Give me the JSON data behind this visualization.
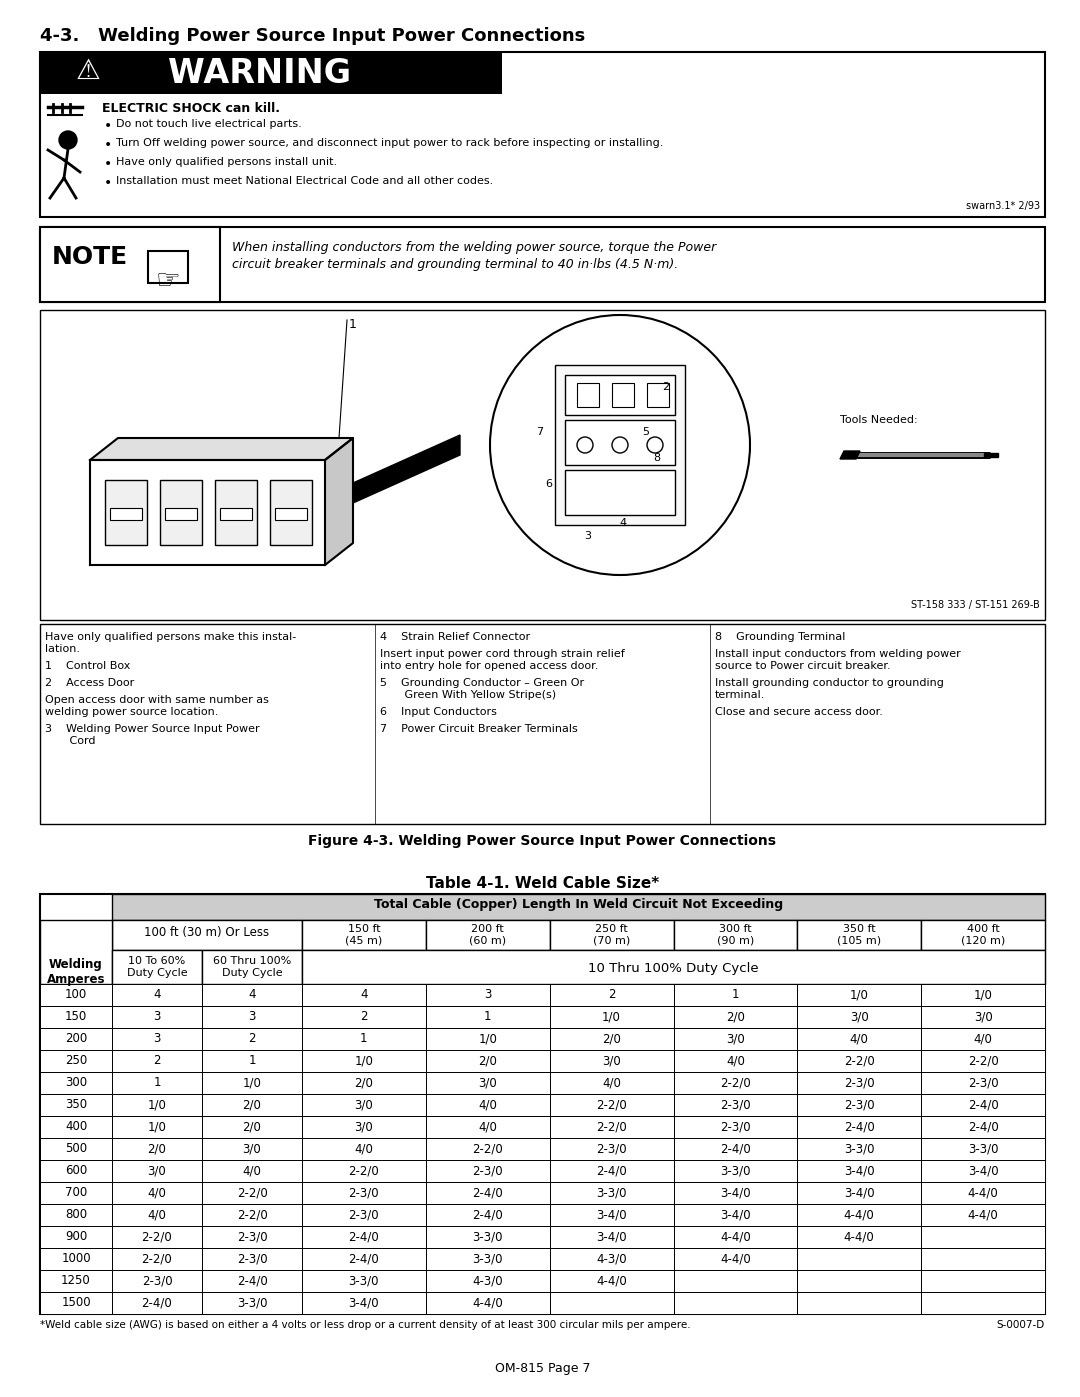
{
  "title": "4-3.   Welding Power Source Input Power Connections",
  "warning_title": "WARNING",
  "warning_subtitle": "ELECTRIC SHOCK can kill.",
  "warning_bullets": [
    "Do not touch live electrical parts.",
    "Turn Off welding power source, and disconnect input power to rack before inspecting or installing.",
    "Have only qualified persons install unit.",
    "Installation must meet National Electrical Code and all other codes."
  ],
  "warning_code": "swarn3.1* 2/93",
  "note_text": "When installing conductors from the welding power source, torque the Power\ncircuit breaker terminals and grounding terminal to 40 in·lbs (4.5 N·m).",
  "figure_caption": "Figure 4-3. Welding Power Source Input Power Connections",
  "figure_labels_left": [
    "Have only qualified persons make this instal-\nlation.",
    "1    Control Box",
    "2    Access Door",
    "Open access door with same number as\nwelding power source location.",
    "3    Welding Power Source Input Power\n       Cord"
  ],
  "figure_labels_mid": [
    "4    Strain Relief Connector",
    "Insert input power cord through strain relief\ninto entry hole for opened access door.",
    "5    Grounding Conductor – Green Or\n       Green With Yellow Stripe(s)",
    "6    Input Conductors",
    "7    Power Circuit Breaker Terminals"
  ],
  "figure_labels_right": [
    "8    Grounding Terminal",
    "Install input conductors from welding power\nsource to Power circuit breaker.",
    "Install grounding conductor to grounding\nterminal.",
    "Close and secure access door."
  ],
  "table_title": "Table 4-1. Weld Cable Size*",
  "table_header_top": "Total Cable (Copper) Length In Weld Circuit Not Exceeding",
  "table_col_headers": [
    "100 ft (30 m) Or Less",
    "150 ft\n(45 m)",
    "200 ft\n(60 m)",
    "250 ft\n(70 m)",
    "300 ft\n(90 m)",
    "350 ft\n(105 m)",
    "400 ft\n(120 m)"
  ],
  "table_duty_span": "10 Thru 100% Duty Cycle",
  "table_amperes": [
    100,
    150,
    200,
    250,
    300,
    350,
    400,
    500,
    600,
    700,
    800,
    900,
    1000,
    1250,
    1500
  ],
  "table_data": [
    [
      "4",
      "4",
      "4",
      "3",
      "2",
      "1",
      "1/0",
      "1/0"
    ],
    [
      "3",
      "3",
      "2",
      "1",
      "1/0",
      "2/0",
      "3/0",
      "3/0"
    ],
    [
      "3",
      "2",
      "1",
      "1/0",
      "2/0",
      "3/0",
      "4/0",
      "4/0"
    ],
    [
      "2",
      "1",
      "1/0",
      "2/0",
      "3/0",
      "4/0",
      "2-2/0",
      "2-2/0"
    ],
    [
      "1",
      "1/0",
      "2/0",
      "3/0",
      "4/0",
      "2-2/0",
      "2-3/0",
      "2-3/0"
    ],
    [
      "1/0",
      "2/0",
      "3/0",
      "4/0",
      "2-2/0",
      "2-3/0",
      "2-3/0",
      "2-4/0"
    ],
    [
      "1/0",
      "2/0",
      "3/0",
      "4/0",
      "2-2/0",
      "2-3/0",
      "2-4/0",
      "2-4/0"
    ],
    [
      "2/0",
      "3/0",
      "4/0",
      "2-2/0",
      "2-3/0",
      "2-4/0",
      "3-3/0",
      "3-3/0"
    ],
    [
      "3/0",
      "4/0",
      "2-2/0",
      "2-3/0",
      "2-4/0",
      "3-3/0",
      "3-4/0",
      "3-4/0"
    ],
    [
      "4/0",
      "2-2/0",
      "2-3/0",
      "2-4/0",
      "3-3/0",
      "3-4/0",
      "3-4/0",
      "4-4/0"
    ],
    [
      "4/0",
      "2-2/0",
      "2-3/0",
      "2-4/0",
      "3-4/0",
      "3-4/0",
      "4-4/0",
      "4-4/0"
    ],
    [
      "2-2/0",
      "2-3/0",
      "2-4/0",
      "3-3/0",
      "3-4/0",
      "4-4/0",
      "4-4/0",
      ""
    ],
    [
      "2-2/0",
      "2-3/0",
      "2-4/0",
      "3-3/0",
      "4-3/0",
      "4-4/0",
      "",
      ""
    ],
    [
      "2-3/0",
      "2-4/0",
      "3-3/0",
      "4-3/0",
      "4-4/0",
      "",
      "",
      ""
    ],
    [
      "2-4/0",
      "3-3/0",
      "3-4/0",
      "4-4/0",
      "",
      "",
      "",
      ""
    ]
  ],
  "table_footnote": "*Weld cable size (AWG) is based on either a 4 volts or less drop or a current density of at least 300 circular mils per ampere.",
  "table_code": "S-0007-D",
  "page_footer": "OM-815 Page 7",
  "background_color": "#ffffff"
}
